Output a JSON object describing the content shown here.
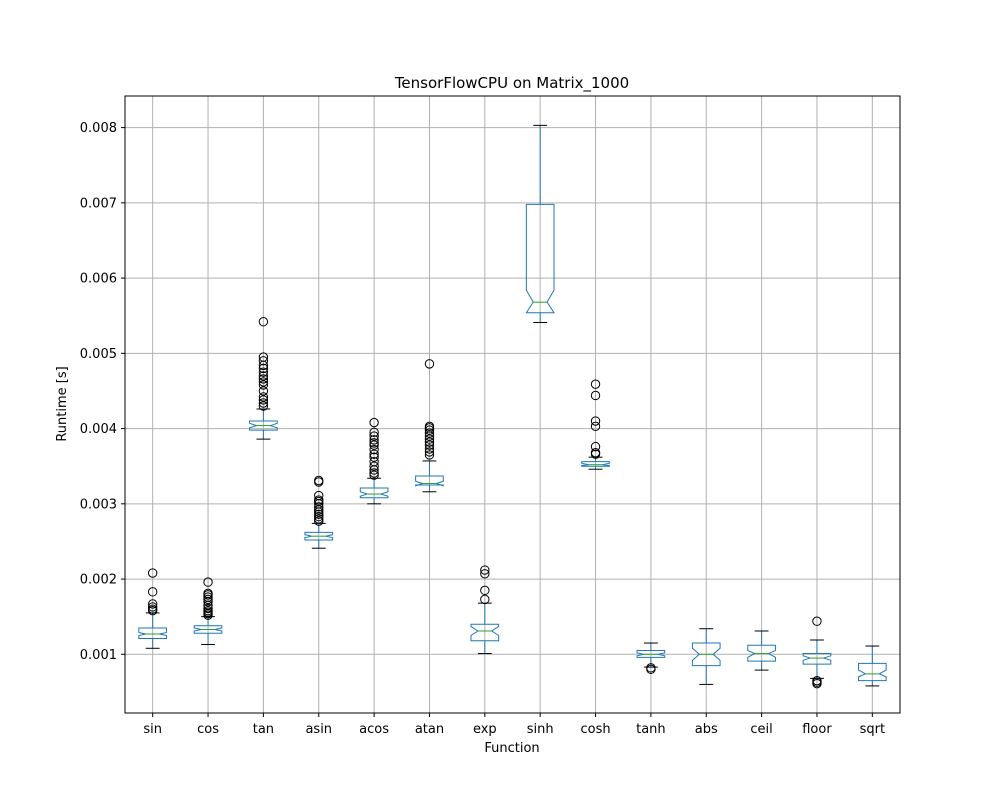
{
  "chart_data": {
    "type": "box",
    "title": "TensorFlowCPU on Matrix_1000",
    "xlabel": "Function",
    "ylabel": "Runtime [s]",
    "ylim": [
      0.00022,
      0.00842
    ],
    "yticks": [
      "0.001",
      "0.002",
      "0.003",
      "0.004",
      "0.005",
      "0.006",
      "0.007",
      "0.008"
    ],
    "grid": true,
    "notched": true,
    "colors": {
      "box": "#1f77b4",
      "median": "#2ca02c",
      "whisker": "#000000",
      "flier": "#000000",
      "grid": "#b0b0b0"
    },
    "categories": [
      "sin",
      "cos",
      "tan",
      "asin",
      "acos",
      "atan",
      "exp",
      "sinh",
      "cosh",
      "tanh",
      "abs",
      "ceil",
      "floor",
      "sqrt"
    ],
    "boxes": [
      {
        "name": "sin",
        "whislo": 0.00108,
        "q1": 0.00121,
        "med": 0.00127,
        "q3": 0.00135,
        "whishi": 0.00155,
        "notch": [
          0.00125,
          0.00129
        ],
        "fliers": [
          0.00158,
          0.0016,
          0.00163,
          0.00167,
          0.00183,
          0.00208
        ]
      },
      {
        "name": "cos",
        "whislo": 0.00113,
        "q1": 0.00128,
        "med": 0.00133,
        "q3": 0.00138,
        "whishi": 0.0015,
        "notch": [
          0.00131,
          0.00135
        ],
        "fliers": [
          0.00152,
          0.00154,
          0.00156,
          0.00158,
          0.00161,
          0.00165,
          0.0017,
          0.00173,
          0.00176,
          0.00179,
          0.00181,
          0.00196
        ]
      },
      {
        "name": "tan",
        "whislo": 0.00386,
        "q1": 0.00398,
        "med": 0.00404,
        "q3": 0.0041,
        "whishi": 0.00426,
        "notch": [
          0.00401,
          0.00407
        ],
        "fliers": [
          0.0043,
          0.00434,
          0.00438,
          0.00442,
          0.0045,
          0.00458,
          0.00462,
          0.00466,
          0.0047,
          0.00475,
          0.0048,
          0.00484,
          0.0049,
          0.00495,
          0.00542
        ]
      },
      {
        "name": "asin",
        "whislo": 0.00241,
        "q1": 0.00252,
        "med": 0.00257,
        "q3": 0.00262,
        "whishi": 0.00274,
        "notch": [
          0.00255,
          0.00259
        ],
        "fliers": [
          0.00277,
          0.0028,
          0.00283,
          0.00286,
          0.00289,
          0.00292,
          0.00296,
          0.003,
          0.00303,
          0.00305,
          0.00311,
          0.00329,
          0.00331
        ]
      },
      {
        "name": "acos",
        "whislo": 0.003,
        "q1": 0.00308,
        "med": 0.00313,
        "q3": 0.00321,
        "whishi": 0.00334,
        "notch": [
          0.0031,
          0.00316
        ],
        "fliers": [
          0.00338,
          0.00341,
          0.00345,
          0.0035,
          0.00356,
          0.00362,
          0.00366,
          0.00372,
          0.00378,
          0.00381,
          0.00385,
          0.0039,
          0.00395,
          0.00408
        ]
      },
      {
        "name": "atan",
        "whislo": 0.00316,
        "q1": 0.00325,
        "med": 0.00327,
        "q3": 0.00337,
        "whishi": 0.00357,
        "notch": [
          0.00324,
          0.0033
        ],
        "fliers": [
          0.00365,
          0.00369,
          0.00373,
          0.00378,
          0.00382,
          0.00386,
          0.0039,
          0.00394,
          0.00398,
          0.00401,
          0.00403,
          0.00486
        ]
      },
      {
        "name": "exp",
        "whislo": 0.00101,
        "q1": 0.00118,
        "med": 0.00131,
        "q3": 0.0014,
        "whishi": 0.00168,
        "notch": [
          0.00125,
          0.00137
        ],
        "fliers": [
          0.00173,
          0.00185,
          0.00207,
          0.00212
        ]
      },
      {
        "name": "sinh",
        "whislo": 0.00541,
        "q1": 0.00554,
        "med": 0.00568,
        "q3": 0.00698,
        "whishi": 0.00803,
        "notch": [
          0.00554,
          0.00584
        ],
        "fliers": []
      },
      {
        "name": "cosh",
        "whislo": 0.00346,
        "q1": 0.0035,
        "med": 0.00352,
        "q3": 0.00356,
        "whishi": 0.00362,
        "notch": [
          0.00351,
          0.00354
        ],
        "fliers": [
          0.00366,
          0.00368,
          0.00376,
          0.00403,
          0.0041,
          0.00444,
          0.00459
        ]
      },
      {
        "name": "tanh",
        "whislo": 0.00083,
        "q1": 0.00096,
        "med": 0.001,
        "q3": 0.00105,
        "whishi": 0.00115,
        "notch": [
          0.00098,
          0.00102
        ],
        "fliers": [
          0.0008,
          0.00082
        ]
      },
      {
        "name": "abs",
        "whislo": 0.0006,
        "q1": 0.00085,
        "med": 0.001,
        "q3": 0.00115,
        "whishi": 0.00134,
        "notch": [
          0.00092,
          0.00108
        ],
        "fliers": []
      },
      {
        "name": "ceil",
        "whislo": 0.00079,
        "q1": 0.00091,
        "med": 0.00101,
        "q3": 0.00112,
        "whishi": 0.00131,
        "notch": [
          0.00096,
          0.00105
        ],
        "fliers": []
      },
      {
        "name": "floor",
        "whislo": 0.00068,
        "q1": 0.00087,
        "med": 0.00095,
        "q3": 0.00101,
        "whishi": 0.00119,
        "notch": [
          0.00092,
          0.00098
        ],
        "fliers": [
          0.00061,
          0.00063,
          0.00065,
          0.00144
        ]
      },
      {
        "name": "sqrt",
        "whislo": 0.00058,
        "q1": 0.00065,
        "med": 0.00074,
        "q3": 0.00088,
        "whishi": 0.00111,
        "notch": [
          0.0007,
          0.00079
        ],
        "fliers": []
      }
    ]
  }
}
